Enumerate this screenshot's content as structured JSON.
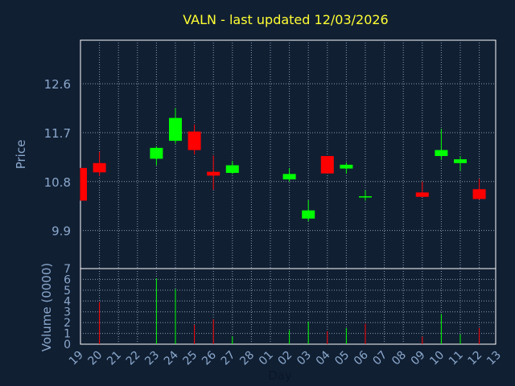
{
  "chart_data": [
    {
      "type": "candlestick",
      "title": "VALN - last updated 12/03/2026",
      "ylabel": "Price",
      "ylim": [
        9.2,
        13.4
      ],
      "yticks": [
        "12.6",
        "11.7",
        "10.8",
        "9.9"
      ],
      "categories": [
        "19",
        "20",
        "21",
        "22",
        "23",
        "24",
        "25",
        "26",
        "27",
        "28",
        "01",
        "02",
        "03",
        "04",
        "05",
        "06",
        "07",
        "08",
        "09",
        "10",
        "11",
        "12",
        "13"
      ],
      "candles": [
        {
          "day": "19",
          "open": 11.05,
          "high": 11.05,
          "low": 10.45,
          "close": 10.45
        },
        {
          "day": "20",
          "open": 11.14,
          "high": 11.35,
          "low": 10.9,
          "close": 10.97
        },
        {
          "day": "23",
          "open": 11.22,
          "high": 11.45,
          "low": 11.1,
          "close": 11.42
        },
        {
          "day": "24",
          "open": 11.55,
          "high": 12.15,
          "low": 11.5,
          "close": 11.97
        },
        {
          "day": "25",
          "open": 11.72,
          "high": 11.85,
          "low": 11.3,
          "close": 11.38
        },
        {
          "day": "26",
          "open": 10.98,
          "high": 11.28,
          "low": 10.65,
          "close": 10.91
        },
        {
          "day": "27",
          "open": 10.96,
          "high": 11.18,
          "low": 10.94,
          "close": 11.1
        },
        {
          "day": "02",
          "open": 10.84,
          "high": 11.05,
          "low": 10.8,
          "close": 10.94
        },
        {
          "day": "03",
          "open": 10.12,
          "high": 10.46,
          "low": 10.07,
          "close": 10.27
        },
        {
          "day": "04",
          "open": 11.27,
          "high": 11.27,
          "low": 10.95,
          "close": 10.95
        },
        {
          "day": "05",
          "open": 11.04,
          "high": 11.15,
          "low": 10.95,
          "close": 11.11
        },
        {
          "day": "06",
          "open": 10.53,
          "high": 10.64,
          "low": 10.45,
          "close": 10.53
        },
        {
          "day": "09",
          "open": 10.6,
          "high": 10.8,
          "low": 10.52,
          "close": 10.52
        },
        {
          "day": "10",
          "open": 11.27,
          "high": 11.77,
          "low": 11.2,
          "close": 11.38
        },
        {
          "day": "11",
          "open": 11.14,
          "high": 11.27,
          "low": 11.0,
          "close": 11.21
        },
        {
          "day": "12",
          "open": 10.66,
          "high": 10.85,
          "low": 10.47,
          "close": 10.48
        }
      ]
    },
    {
      "type": "bar",
      "ylabel": "Volume (0000)",
      "xlabel": "Day",
      "ylim": [
        0,
        7
      ],
      "yticks": [
        "0",
        "1",
        "2",
        "3",
        "4",
        "5",
        "6",
        "7"
      ],
      "categories": [
        "19",
        "20",
        "21",
        "22",
        "23",
        "24",
        "25",
        "26",
        "27",
        "28",
        "01",
        "02",
        "03",
        "04",
        "05",
        "06",
        "07",
        "08",
        "09",
        "10",
        "11",
        "12",
        "13"
      ],
      "bars": [
        {
          "day": "20",
          "value": 3.9,
          "dir": "down"
        },
        {
          "day": "23",
          "value": 6.1,
          "dir": "up"
        },
        {
          "day": "24",
          "value": 5.1,
          "dir": "up"
        },
        {
          "day": "25",
          "value": 1.8,
          "dir": "down"
        },
        {
          "day": "26",
          "value": 2.3,
          "dir": "down"
        },
        {
          "day": "27",
          "value": 0.7,
          "dir": "up"
        },
        {
          "day": "02",
          "value": 1.3,
          "dir": "up"
        },
        {
          "day": "03",
          "value": 2.1,
          "dir": "up"
        },
        {
          "day": "04",
          "value": 1.2,
          "dir": "down"
        },
        {
          "day": "05",
          "value": 1.5,
          "dir": "up"
        },
        {
          "day": "06",
          "value": 1.9,
          "dir": "down"
        },
        {
          "day": "09",
          "value": 0.7,
          "dir": "down"
        },
        {
          "day": "10",
          "value": 2.8,
          "dir": "up"
        },
        {
          "day": "11",
          "value": 0.9,
          "dir": "up"
        },
        {
          "day": "12",
          "value": 1.5,
          "dir": "down"
        }
      ]
    }
  ],
  "colors": {
    "background": "#111f33",
    "frame": "#ffffff",
    "grid": "#8c9bb0",
    "title": "#ffff33",
    "axis_text": "#8aa8cc",
    "up": "#00ff00",
    "down": "#ff0000"
  }
}
